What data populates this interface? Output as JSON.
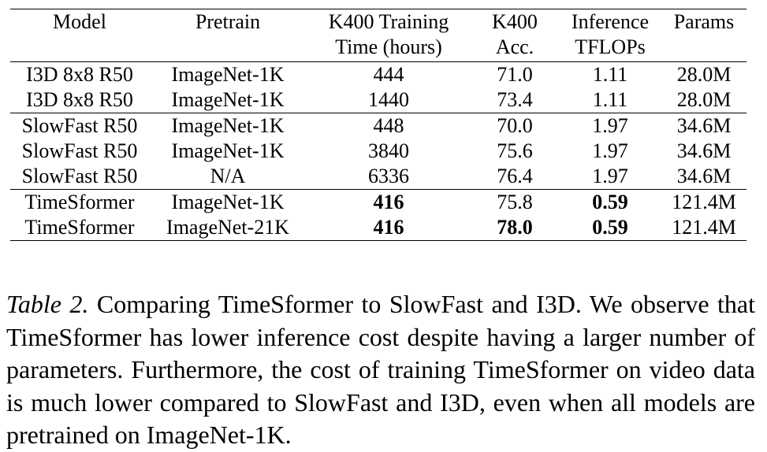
{
  "table": {
    "headers": {
      "model": "Model",
      "pretrain": "Pretrain",
      "time_line1": "K400 Training",
      "time_line2": "Time (hours)",
      "acc_line1": "K400",
      "acc_line2": "Acc.",
      "tflops_line1": "Inference",
      "tflops_line2": "TFLOPs",
      "params": "Params"
    },
    "rows": [
      {
        "model": "I3D 8x8 R50",
        "pretrain": "ImageNet-1K",
        "time": "444",
        "acc": "71.0",
        "tflops": "1.11",
        "params": "28.0M"
      },
      {
        "model": "I3D 8x8 R50",
        "pretrain": "ImageNet-1K",
        "time": "1440",
        "acc": "73.4",
        "tflops": "1.11",
        "params": "28.0M"
      },
      {
        "model": "SlowFast R50",
        "pretrain": "ImageNet-1K",
        "time": "448",
        "acc": "70.0",
        "tflops": "1.97",
        "params": "34.6M"
      },
      {
        "model": "SlowFast R50",
        "pretrain": "ImageNet-1K",
        "time": "3840",
        "acc": "75.6",
        "tflops": "1.97",
        "params": "34.6M"
      },
      {
        "model": "SlowFast R50",
        "pretrain": "N/A",
        "time": "6336",
        "acc": "76.4",
        "tflops": "1.97",
        "params": "34.6M"
      },
      {
        "model": "TimeSformer",
        "pretrain": "ImageNet-1K",
        "time": "416",
        "acc": "75.8",
        "tflops": "0.59",
        "params": "121.4M"
      },
      {
        "model": "TimeSformer",
        "pretrain": "ImageNet-21K",
        "time": "416",
        "acc": "78.0",
        "tflops": "0.59",
        "params": "121.4M"
      }
    ]
  },
  "caption": {
    "label": "Table 2.",
    "text": "Comparing TimeSformer to SlowFast and I3D. We observe that TimeSformer has lower inference cost despite having a larger number of parameters. Furthermore, the cost of training TimeSformer on video data is much lower compared to SlowFast and I3D, even when all models are pretrained on ImageNet-1K."
  }
}
